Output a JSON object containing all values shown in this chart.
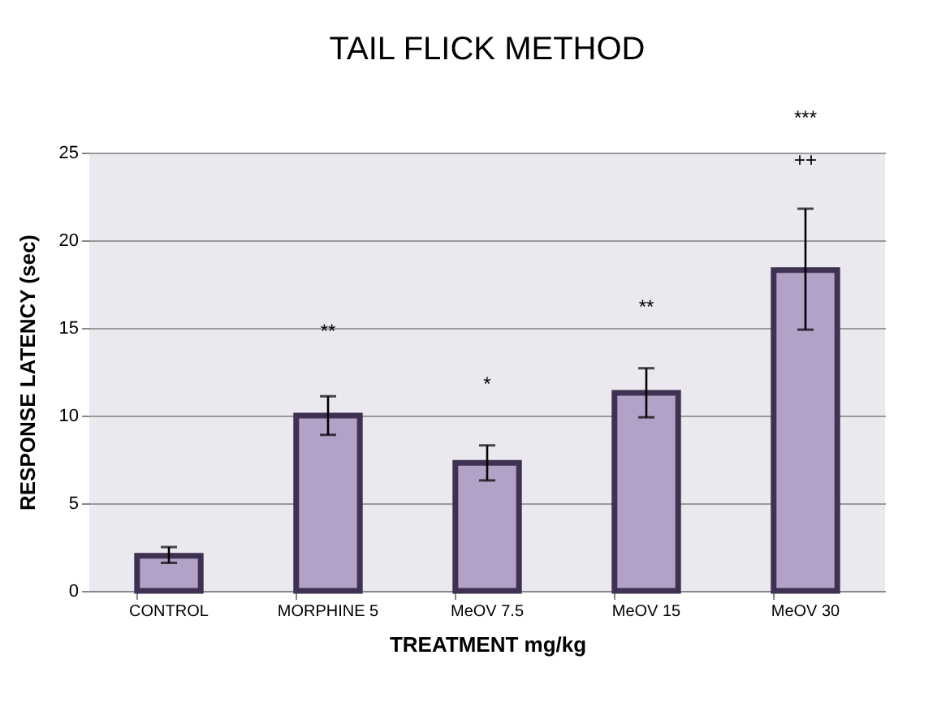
{
  "chart_data": {
    "type": "bar",
    "title": "TAIL FLICK METHOD",
    "xlabel": "TREATMENT mg/kg",
    "ylabel": "RESPONSE LATENCY (sec)",
    "categories": [
      "CONTROL",
      "MORPHINE 5",
      "MeOV 7.5",
      "MeOV 15",
      "MeOV 30"
    ],
    "values": [
      2.0,
      10.0,
      7.3,
      11.3,
      18.3
    ],
    "errors": [
      [
        1.6,
        2.5
      ],
      [
        8.9,
        11.1
      ],
      [
        6.3,
        8.3
      ],
      [
        9.9,
        12.7
      ],
      [
        14.9,
        21.8
      ]
    ],
    "color": "#b3a2c7",
    "ylim": [
      0,
      25
    ],
    "yticks": [
      0,
      5,
      10,
      15,
      20,
      25
    ],
    "grid": "y",
    "annotations": [
      "**",
      "*",
      "**",
      "***",
      "++"
    ]
  }
}
